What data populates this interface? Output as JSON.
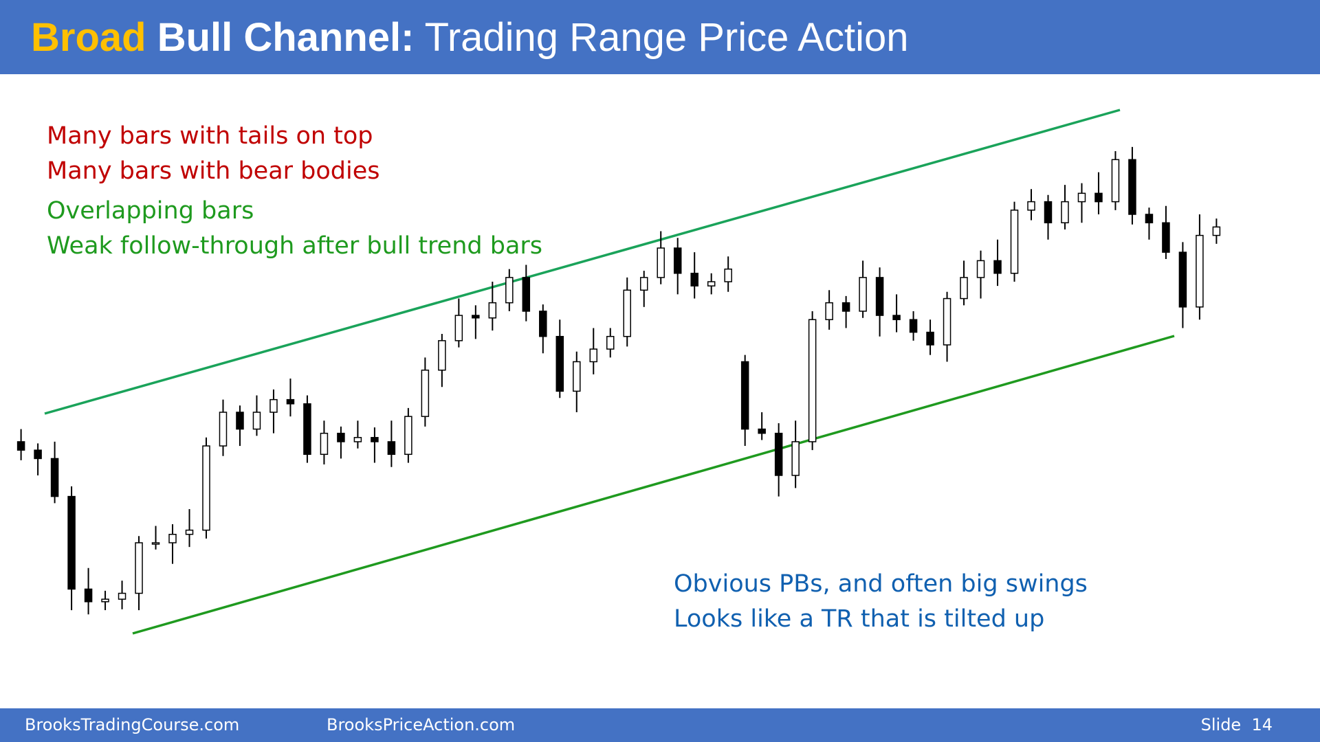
{
  "slide": {
    "title_highlight": "Broad",
    "title_bold": "Bull Channel:",
    "title_rest": "Trading Range Price Action",
    "notes_red": [
      "Many bars with tails on top",
      "Many bars with bear bodies"
    ],
    "notes_green": [
      "Overlapping bars",
      "Weak follow-through after bull trend bars"
    ],
    "notes_blue": [
      "Obvious PBs, and often big swings",
      "Looks like a TR that is tilted up"
    ],
    "footer_left": "BrooksTradingCourse.com",
    "footer_mid": "BrooksPriceAction.com",
    "footer_right": "Slide  14"
  },
  "chart_data": {
    "type": "candlestick",
    "ylim": [
      100,
      800
    ],
    "bull_color": "#ffffff",
    "bear_color": "#000000",
    "open": [
      375,
      365,
      355,
      310,
      200,
      185,
      188,
      195,
      255,
      255,
      265,
      270,
      370,
      410,
      390,
      410,
      425,
      420,
      360,
      385,
      375,
      380,
      375,
      360,
      405,
      460,
      495,
      525,
      522,
      540,
      570,
      530,
      500,
      435,
      470,
      485,
      500,
      555,
      570,
      605,
      575,
      560,
      565,
      470,
      390,
      385,
      335,
      375,
      520,
      540,
      530,
      570,
      525,
      520,
      505,
      490,
      545,
      570,
      590,
      575,
      650,
      660,
      635,
      660,
      670,
      660,
      710,
      645,
      635,
      600,
      535,
      620
    ],
    "high": [
      390,
      373,
      375,
      322,
      225,
      198,
      210,
      263,
      275,
      277,
      295,
      380,
      425,
      418,
      430,
      437,
      450,
      430,
      400,
      393,
      400,
      392,
      400,
      415,
      475,
      503,
      545,
      537,
      565,
      580,
      585,
      538,
      520,
      482,
      510,
      510,
      570,
      578,
      625,
      617,
      600,
      575,
      595,
      478,
      410,
      397,
      400,
      530,
      555,
      548,
      590,
      582,
      550,
      530,
      520,
      553,
      590,
      602,
      615,
      660,
      675,
      668,
      680,
      682,
      695,
      720,
      725,
      653,
      655,
      612,
      645,
      640
    ],
    "low": [
      353,
      335,
      302,
      175,
      170,
      175,
      176,
      175,
      247,
      230,
      250,
      260,
      358,
      370,
      382,
      385,
      405,
      350,
      348,
      355,
      367,
      350,
      345,
      350,
      393,
      440,
      487,
      497,
      507,
      530,
      518,
      480,
      427,
      410,
      455,
      475,
      488,
      535,
      562,
      550,
      545,
      550,
      553,
      370,
      377,
      310,
      320,
      365,
      508,
      510,
      522,
      500,
      505,
      495,
      478,
      470,
      537,
      545,
      560,
      565,
      638,
      615,
      627,
      635,
      645,
      650,
      633,
      615,
      592,
      510,
      520,
      610
    ],
    "close": [
      365,
      355,
      310,
      200,
      185,
      188,
      195,
      255,
      255,
      265,
      270,
      370,
      410,
      390,
      410,
      425,
      420,
      360,
      385,
      375,
      380,
      375,
      360,
      405,
      460,
      495,
      525,
      522,
      540,
      570,
      530,
      500,
      435,
      470,
      485,
      500,
      555,
      570,
      605,
      575,
      560,
      565,
      580,
      390,
      385,
      335,
      375,
      520,
      540,
      530,
      570,
      525,
      520,
      505,
      490,
      545,
      570,
      590,
      575,
      650,
      660,
      635,
      660,
      670,
      660,
      710,
      645,
      635,
      600,
      535,
      620,
      630
    ]
  }
}
